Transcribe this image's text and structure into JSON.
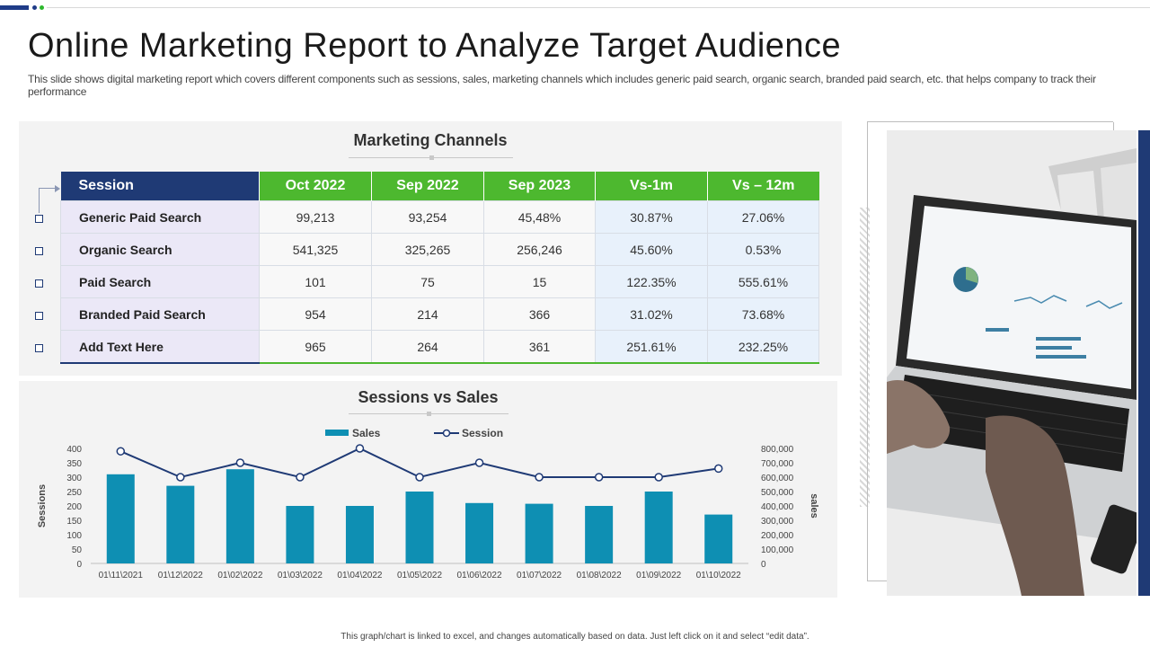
{
  "header": {
    "title": "Online Marketing Report to Analyze Target Audience",
    "subtitle": "This slide shows digital marketing report which covers different components such as sessions, sales, marketing channels which includes generic paid search, organic search, branded paid search, etc. that helps company to track their performance"
  },
  "table": {
    "title": "Marketing Channels",
    "columns": [
      "Session",
      "Oct 2022",
      "Sep 2022",
      "Sep 2023",
      "Vs-1m",
      "Vs – 12m"
    ],
    "rows": [
      {
        "name": "Generic Paid Search",
        "oct2022": "99,213",
        "sep2022": "93,254",
        "sep2023": "45,48%",
        "vs1m": "30.87%",
        "vs12m": "27.06%"
      },
      {
        "name": "Organic Search",
        "oct2022": "541,325",
        "sep2022": "325,265",
        "sep2023": "256,246",
        "vs1m": "45.60%",
        "vs12m": "0.53%"
      },
      {
        "name": "Paid Search",
        "oct2022": "101",
        "sep2022": "75",
        "sep2023": "15",
        "vs1m": "122.35%",
        "vs12m": "555.61%"
      },
      {
        "name": "Branded Paid Search",
        "oct2022": "954",
        "sep2022": "214",
        "sep2023": "366",
        "vs1m": "31.02%",
        "vs12m": "73.68%"
      },
      {
        "name": "Add Text Here",
        "oct2022": "965",
        "sep2022": "264",
        "sep2023": "361",
        "vs1m": "251.61%",
        "vs12m": "232.25%"
      }
    ]
  },
  "chart_data": {
    "type": "bar",
    "title": "Sessions vs Sales",
    "categories": [
      "01\\11\\2021",
      "01\\12\\2022",
      "01\\02\\2022",
      "01\\03\\2022",
      "01\\04\\2022",
      "01\\05\\2022",
      "01\\06\\2022",
      "01\\07\\2022",
      "01\\08\\2022",
      "01\\09\\2022",
      "01\\10\\2022"
    ],
    "series": [
      {
        "name": "Sales",
        "type": "bar",
        "axis": "right",
        "values": [
          620000,
          540000,
          655000,
          400000,
          400000,
          500000,
          420000,
          415000,
          400000,
          500000,
          340000
        ],
        "color": "#0e8fb3"
      },
      {
        "name": "Session",
        "type": "line",
        "axis": "left",
        "values": [
          390,
          300,
          350,
          300,
          400,
          300,
          350,
          300,
          300,
          300,
          330
        ],
        "color": "#1f3a75"
      }
    ],
    "ylabel": "Sessions",
    "y2label": "sales",
    "ylim": [
      0,
      400
    ],
    "y2lim": [
      0,
      800000
    ],
    "yticks": [
      "0",
      "50",
      "100",
      "150",
      "200",
      "250",
      "300",
      "350",
      "400"
    ],
    "y2ticks": [
      "0",
      "100,000",
      "200,000",
      "300,000",
      "400,000",
      "500,000",
      "600,000",
      "700,000",
      "800,000"
    ],
    "legend": "top-center",
    "grid": false
  },
  "footer": {
    "note": "This graph/chart is linked to excel, and changes automatically based on data. Just left click on it and select “edit data”."
  },
  "colors": {
    "accent_navy": "#1f3a75",
    "accent_green": "#4db82f",
    "bar_teal": "#0e8fb3"
  },
  "image": {
    "icon": "laptop-photo"
  }
}
